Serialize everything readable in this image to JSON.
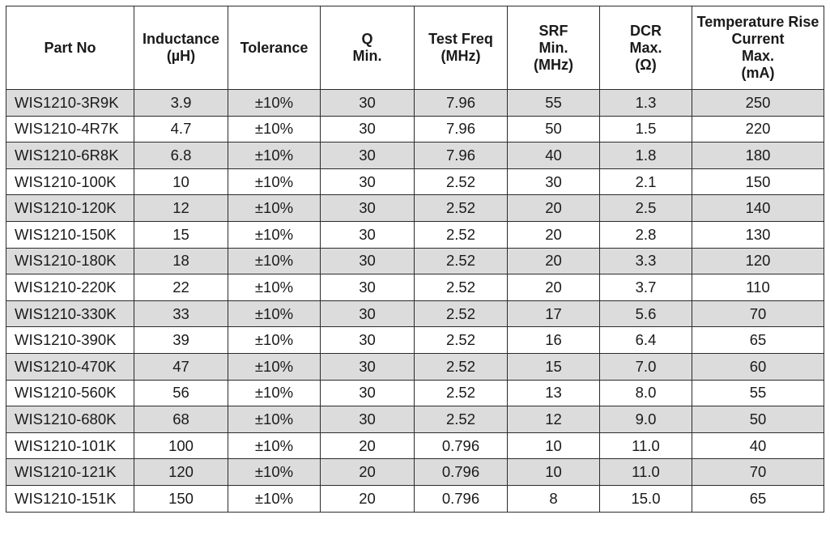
{
  "table": {
    "headers": [
      "Part No",
      "Inductance\n(µH)",
      "Tolerance",
      "Q\nMin.",
      "Test Freq\n(MHz)",
      "SRF\nMin.\n(MHz)",
      "DCR\nMax.\n(Ω)",
      "Temperature Rise\nCurrent\nMax.\n(mA)"
    ],
    "rows": [
      [
        "WIS1210-3R9K",
        "3.9",
        "±10%",
        "30",
        "7.96",
        "55",
        "1.3",
        "250"
      ],
      [
        "WIS1210-4R7K",
        "4.7",
        "±10%",
        "30",
        "7.96",
        "50",
        "1.5",
        "220"
      ],
      [
        "WIS1210-6R8K",
        "6.8",
        "±10%",
        "30",
        "7.96",
        "40",
        "1.8",
        "180"
      ],
      [
        "WIS1210-100K",
        "10",
        "±10%",
        "30",
        "2.52",
        "30",
        "2.1",
        "150"
      ],
      [
        "WIS1210-120K",
        "12",
        "±10%",
        "30",
        "2.52",
        "20",
        "2.5",
        "140"
      ],
      [
        "WIS1210-150K",
        "15",
        "±10%",
        "30",
        "2.52",
        "20",
        "2.8",
        "130"
      ],
      [
        "WIS1210-180K",
        "18",
        "±10%",
        "30",
        "2.52",
        "20",
        "3.3",
        "120"
      ],
      [
        "WIS1210-220K",
        "22",
        "±10%",
        "30",
        "2.52",
        "20",
        "3.7",
        "110"
      ],
      [
        "WIS1210-330K",
        "33",
        "±10%",
        "30",
        "2.52",
        "17",
        "5.6",
        "70"
      ],
      [
        "WIS1210-390K",
        "39",
        "±10%",
        "30",
        "2.52",
        "16",
        "6.4",
        "65"
      ],
      [
        "WIS1210-470K",
        "47",
        "±10%",
        "30",
        "2.52",
        "15",
        "7.0",
        "60"
      ],
      [
        "WIS1210-560K",
        "56",
        "±10%",
        "30",
        "2.52",
        "13",
        "8.0",
        "55"
      ],
      [
        "WIS1210-680K",
        "68",
        "±10%",
        "30",
        "2.52",
        "12",
        "9.0",
        "50"
      ],
      [
        "WIS1210-101K",
        "100",
        "±10%",
        "20",
        "0.796",
        "10",
        "11.0",
        "40"
      ],
      [
        "WIS1210-121K",
        "120",
        "±10%",
        "20",
        "0.796",
        "10",
        "11.0",
        "70"
      ],
      [
        "WIS1210-151K",
        "150",
        "±10%",
        "20",
        "0.796",
        "8",
        "15.0",
        "65"
      ]
    ]
  },
  "colors": {
    "shaded_row": "#dcdcdc",
    "border": "#2b2b2b",
    "background": "#ffffff"
  }
}
